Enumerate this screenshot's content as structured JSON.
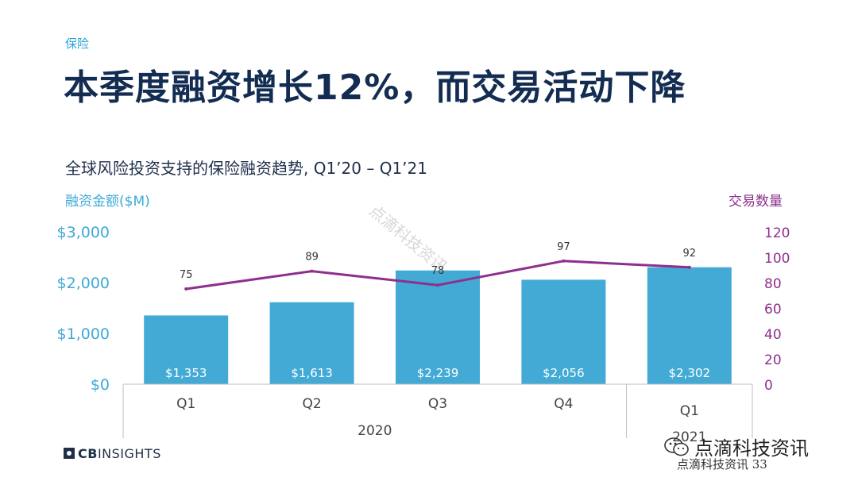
{
  "header": {
    "category": "保险",
    "title": "本季度融资增长12%，而交易活动下降",
    "subtitle": "全球风险投资支持的保险融资趋势, Q1’20 – Q1’21"
  },
  "chart_data": {
    "type": "bar",
    "categories": [
      "Q1",
      "Q2",
      "Q3",
      "Q4",
      "Q1"
    ],
    "year_groups": [
      {
        "label": "2020",
        "span": [
          0,
          3
        ]
      },
      {
        "label": "2021",
        "span": [
          4,
          4
        ]
      }
    ],
    "series": [
      {
        "name": "融资金额($M)",
        "type": "bar",
        "axis": "left",
        "values": [
          1353,
          1613,
          2239,
          2056,
          2302
        ],
        "labels": [
          "$1,353",
          "$1,613",
          "$2,239",
          "$2,056",
          "$2,302"
        ]
      },
      {
        "name": "交易数量",
        "type": "line",
        "axis": "right",
        "values": [
          75,
          89,
          78,
          97,
          92
        ],
        "labels": [
          "75",
          "89",
          "78",
          "97",
          "92"
        ]
      }
    ],
    "y_left": {
      "label": "融资金额($M)",
      "min": 0,
      "max": 3000,
      "ticks": [
        0,
        1000,
        2000,
        3000
      ],
      "tick_labels": [
        "$0",
        "$1,000",
        "$2,000",
        "$3,000"
      ]
    },
    "y_right": {
      "label": "交易数量",
      "min": 0,
      "max": 120,
      "ticks": [
        0,
        20,
        40,
        60,
        80,
        100,
        120
      ],
      "tick_labels": [
        "0",
        "20",
        "40",
        "60",
        "80",
        "100",
        "120"
      ]
    },
    "grid": false,
    "colors": {
      "bar": "#42aad5",
      "line": "#8e2f8e",
      "left_axis": "#3eaad6",
      "right_axis": "#8e2f8e"
    }
  },
  "footer": {
    "logo_part1": "CB",
    "logo_part2": "INSIGHTS",
    "watermark_brand": "点滴科技资讯",
    "watermark_sub": "点滴科技资讯 33",
    "watermark_diag": "点滴科技资讯",
    "wechat_icon": "wechat-icon"
  }
}
